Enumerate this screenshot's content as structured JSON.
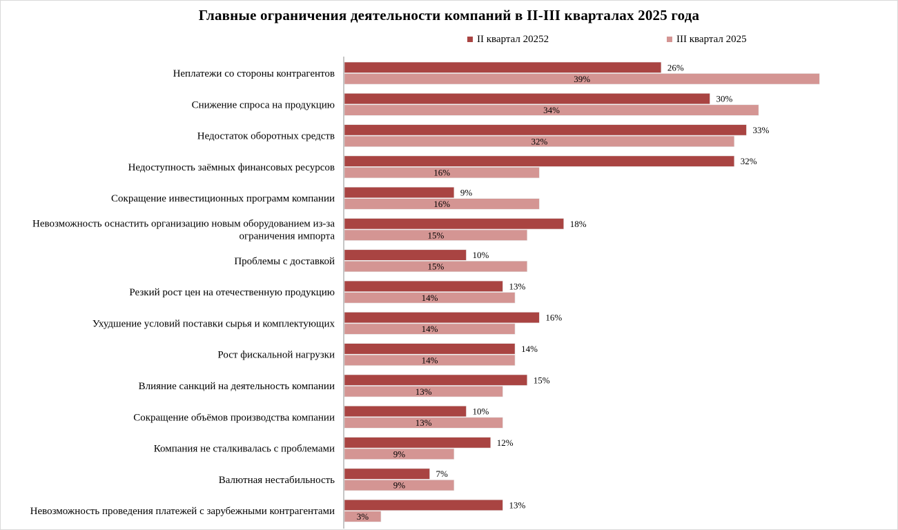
{
  "chart_data": {
    "type": "bar",
    "orientation": "horizontal",
    "title": "Главные ограничения деятельности компаний в II-III кварталах 2025 года",
    "xlabel": "",
    "ylabel": "",
    "xlim": [
      0,
      40
    ],
    "grid": false,
    "legend_position": "top-right",
    "categories": [
      [
        "Неплатежи со стороны контрагентов"
      ],
      [
        "Снижение спроса на продукцию"
      ],
      [
        "Недостаток оборотных средств"
      ],
      [
        "Недоступность заёмных финансовых ресурсов"
      ],
      [
        "Сокращение инвестиционных программ компании"
      ],
      [
        "Невозможность оснастить организацию новым оборудованием из-за",
        "ограничения импорта"
      ],
      [
        "Проблемы с доставкой"
      ],
      [
        "Резкий рост цен на отечественную продукцию"
      ],
      [
        "Ухудшение условий поставки сырья и комплектующих"
      ],
      [
        "Рост фискальной нагрузки"
      ],
      [
        "Влияние санкций на деятельность компании"
      ],
      [
        "Сокращение объёмов производства компании"
      ],
      [
        "Компания не сталкивалась с проблемами"
      ],
      [
        "Валютная нестабильность"
      ],
      [
        "Невозможность проведения платежей с зарубежными контрагентами"
      ]
    ],
    "series": [
      {
        "name": "II квартал 20252",
        "color": "#a94442",
        "values": [
          26,
          30,
          33,
          32,
          9,
          18,
          10,
          13,
          16,
          14,
          15,
          10,
          12,
          7,
          13
        ],
        "labels": [
          "26%",
          "30%",
          "33%",
          "32%",
          "9%",
          "18%",
          "10%",
          "13%",
          "16%",
          "14%",
          "15%",
          "10%",
          "12%",
          "7%",
          "13%"
        ]
      },
      {
        "name": "III квартал 2025",
        "color": "#d49593",
        "values": [
          39,
          34,
          32,
          16,
          16,
          15,
          15,
          14,
          14,
          14,
          13,
          13,
          9,
          9,
          3
        ],
        "labels": [
          "39%",
          "34%",
          "32%",
          "16%",
          "16%",
          "15%",
          "15%",
          "14%",
          "14%",
          "14%",
          "13%",
          "13%",
          "9%",
          "9%",
          "3%"
        ]
      }
    ]
  }
}
